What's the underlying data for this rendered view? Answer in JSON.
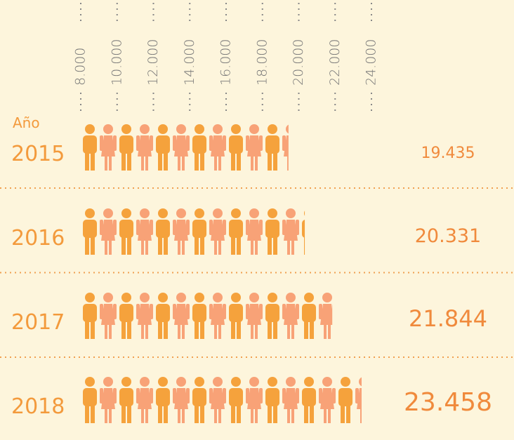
{
  "chart_data": {
    "type": "pictogram",
    "ylabel": "Año",
    "categories": [
      "2015",
      "2016",
      "2017",
      "2018"
    ],
    "values": [
      19435,
      20331,
      21844,
      23458
    ],
    "value_labels": [
      "19.435",
      "20.331",
      "21.844",
      "23.458"
    ],
    "xlim": [
      8000,
      24000
    ],
    "xticks": [
      {
        "value": 8000,
        "label": "8.000"
      },
      {
        "value": 10000,
        "label": "10.000"
      },
      {
        "value": 12000,
        "label": "12.000"
      },
      {
        "value": 14000,
        "label": "14.000"
      },
      {
        "value": 16000,
        "label": "16.000"
      },
      {
        "value": 18000,
        "label": "18.000"
      },
      {
        "value": 20000,
        "label": "20.000"
      },
      {
        "value": 22000,
        "label": "22.000"
      },
      {
        "value": 24000,
        "label": "24.000"
      }
    ],
    "colors": [
      "#f5a23c",
      "#f8a277"
    ]
  }
}
